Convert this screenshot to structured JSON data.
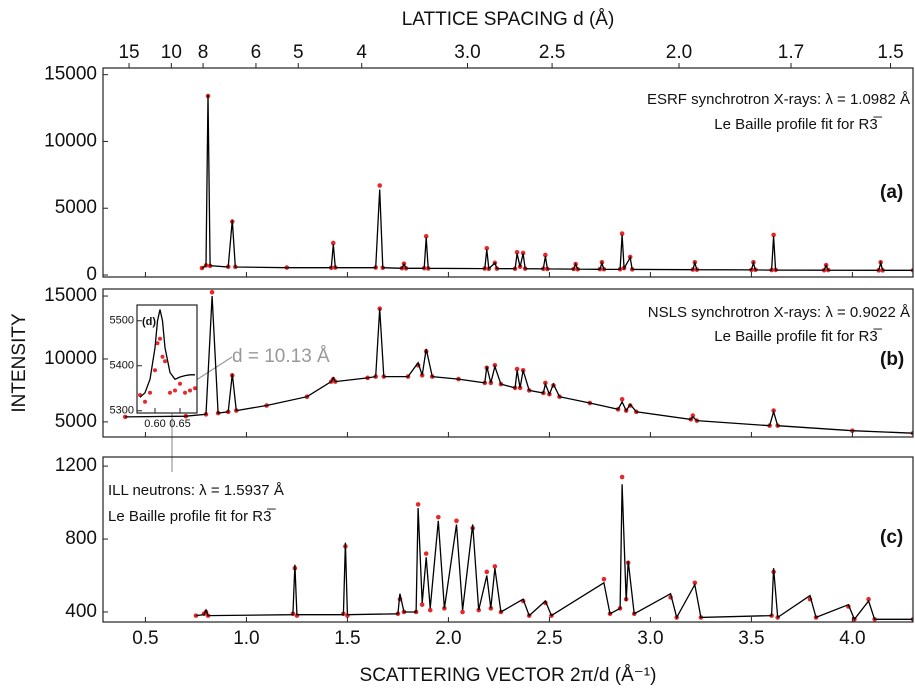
{
  "chart_data": [
    {
      "type": "line",
      "panel": "(a)",
      "x2label": "LATTICE SPACING d (Å)",
      "x2scale": "reciprocal",
      "x2ticks": [
        15,
        10,
        8,
        6,
        5,
        4,
        {
          "value": 3,
          "label": "3.0"
        },
        2.5,
        {
          "value": 2,
          "label": "2.0"
        },
        1.7,
        1.5
      ],
      "annotations": [
        "ESRF synchrotron X-rays: λ = 1.0982 Å",
        "Le Baille profile fit for R3̅"
      ],
      "xlim": [
        0.29,
        4.3
      ],
      "ylim": [
        -150,
        15500
      ],
      "yticks": [
        0,
        5000,
        10000,
        15000
      ],
      "x": [
        0.78,
        0.8,
        0.81,
        0.82,
        0.91,
        0.93,
        0.945,
        1.2,
        1.42,
        1.43,
        1.44,
        1.64,
        1.66,
        1.675,
        1.77,
        1.78,
        1.79,
        1.88,
        1.89,
        1.9,
        2.18,
        2.19,
        2.2,
        2.23,
        2.24,
        2.33,
        2.34,
        2.355,
        2.37,
        2.38,
        2.47,
        2.48,
        2.49,
        2.62,
        2.63,
        2.64,
        2.75,
        2.76,
        2.77,
        2.85,
        2.86,
        2.87,
        2.9,
        2.91,
        3.21,
        3.22,
        3.23,
        3.5,
        3.51,
        3.52,
        3.6,
        3.61,
        3.62,
        3.86,
        3.87,
        3.88,
        4.13,
        4.14,
        4.15,
        4.3
      ],
      "series": [
        {
          "style": "points",
          "color": "#e8272a",
          "values": [
            520,
            720,
            13400,
            680,
            620,
            4000,
            610,
            560,
            540,
            2400,
            560,
            560,
            6700,
            540,
            510,
            850,
            500,
            510,
            2900,
            490,
            490,
            2000,
            470,
            910,
            480,
            470,
            1700,
            620,
            1650,
            480,
            470,
            1500,
            450,
            450,
            820,
            430,
            440,
            950,
            430,
            430,
            3100,
            520,
            1350,
            420,
            410,
            950,
            400,
            380,
            950,
            390,
            370,
            3000,
            380,
            360,
            740,
            370,
            350,
            950,
            350,
            350
          ]
        },
        {
          "style": "line",
          "color": "#000000",
          "values": [
            500,
            700,
            13500,
            700,
            600,
            4100,
            600,
            550,
            550,
            2300,
            550,
            550,
            6400,
            550,
            500,
            800,
            500,
            500,
            2800,
            500,
            480,
            1900,
            480,
            900,
            480,
            470,
            1600,
            600,
            1600,
            470,
            460,
            1400,
            460,
            440,
            800,
            440,
            430,
            900,
            430,
            420,
            3000,
            500,
            1300,
            420,
            400,
            900,
            400,
            380,
            900,
            380,
            370,
            2900,
            370,
            360,
            700,
            360,
            350,
            900,
            350,
            350
          ]
        }
      ]
    },
    {
      "type": "line",
      "panel": "(b)",
      "ylabel": "INTENSITY",
      "annotations": [
        "NSLS synchrotron X-rays: λ = 0.9022 Å",
        "Le Baille profile fit for R3̅",
        "d = 10.13 Å"
      ],
      "xlim": [
        0.29,
        4.3
      ],
      "ylim": [
        3800,
        15560
      ],
      "yticks": [
        5000,
        10000,
        15000
      ],
      "x": [
        0.4,
        0.7,
        0.8,
        0.83,
        0.86,
        0.91,
        0.93,
        0.95,
        1.1,
        1.3,
        1.42,
        1.43,
        1.44,
        1.6,
        1.64,
        1.66,
        1.68,
        1.8,
        1.85,
        1.87,
        1.89,
        1.92,
        2.05,
        2.18,
        2.19,
        2.21,
        2.23,
        2.26,
        2.33,
        2.34,
        2.355,
        2.37,
        2.4,
        2.47,
        2.48,
        2.5,
        2.52,
        2.55,
        2.7,
        2.84,
        2.86,
        2.88,
        2.9,
        2.93,
        3.2,
        3.21,
        3.23,
        3.59,
        3.61,
        3.63,
        4.0,
        4.3
      ],
      "series": [
        {
          "style": "points",
          "color": "#e8272a",
          "values": [
            5400,
            5450,
            5600,
            15300,
            5700,
            5800,
            8700,
            5900,
            6300,
            7000,
            8200,
            8400,
            8200,
            8500,
            8600,
            14000,
            8600,
            8600,
            9500,
            8700,
            10600,
            8600,
            8400,
            8100,
            9300,
            8100,
            9500,
            8000,
            7700,
            9200,
            7700,
            9100,
            7500,
            7300,
            8100,
            7200,
            7900,
            7000,
            6500,
            6000,
            6800,
            5900,
            6300,
            5800,
            5200,
            5500,
            5100,
            4700,
            5900,
            4700,
            4300,
            4100
          ]
        },
        {
          "style": "line",
          "color": "#000000",
          "values": [
            5400,
            5450,
            5600,
            15000,
            5700,
            5800,
            8800,
            5900,
            6300,
            7000,
            8200,
            8500,
            8200,
            8500,
            8600,
            14000,
            8600,
            8600,
            9700,
            8700,
            10800,
            8600,
            8400,
            8100,
            9400,
            8100,
            9400,
            8000,
            7700,
            9100,
            7700,
            9100,
            7500,
            7300,
            8000,
            7200,
            8000,
            7000,
            6500,
            6000,
            6600,
            5900,
            6400,
            5800,
            5200,
            5400,
            5100,
            4700,
            5800,
            4700,
            4300,
            4100
          ]
        }
      ]
    },
    {
      "type": "line",
      "panel": "(c)",
      "xlabel": "SCATTERING VECTOR 2π/d (Å⁻¹)",
      "annotations": [
        "ILL neutrons: λ = 1.5937 Å",
        "Le Baille profile fit for R3̅"
      ],
      "xlim": [
        0.29,
        4.3
      ],
      "ylim": [
        345,
        1250
      ],
      "yticks": [
        400,
        800,
        1200
      ],
      "xticks": [
        0.5,
        {
          "value": 1,
          "label": "1.0"
        },
        1.5,
        {
          "value": 2,
          "label": "2.0"
        },
        2.5,
        {
          "value": 3,
          "label": "3.0"
        },
        3.5,
        {
          "value": 4,
          "label": "4.0"
        }
      ],
      "x": [
        0.75,
        0.79,
        0.8,
        0.81,
        1.23,
        1.24,
        1.25,
        1.48,
        1.49,
        1.5,
        1.75,
        1.76,
        1.78,
        1.84,
        1.85,
        1.87,
        1.89,
        1.91,
        1.95,
        1.98,
        2.04,
        2.07,
        2.12,
        2.15,
        2.19,
        2.21,
        2.23,
        2.26,
        2.37,
        2.4,
        2.48,
        2.51,
        2.77,
        2.8,
        2.85,
        2.86,
        2.88,
        2.89,
        2.92,
        3.1,
        3.13,
        3.22,
        3.25,
        3.6,
        3.61,
        3.63,
        3.79,
        3.82,
        3.98,
        4.01,
        4.08,
        4.11,
        4.3
      ],
      "series": [
        {
          "style": "points",
          "color": "#e8272a",
          "values": [
            380,
            390,
            400,
            380,
            390,
            640,
            380,
            390,
            760,
            380,
            390,
            470,
            400,
            400,
            990,
            440,
            720,
            410,
            920,
            420,
            900,
            400,
            860,
            410,
            620,
            420,
            650,
            400,
            460,
            380,
            450,
            380,
            580,
            390,
            420,
            1140,
            470,
            670,
            390,
            480,
            370,
            560,
            370,
            380,
            620,
            370,
            470,
            370,
            430,
            360,
            470,
            360,
            360
          ]
        },
        {
          "style": "line",
          "color": "#000000",
          "values": [
            380,
            385,
            410,
            380,
            385,
            660,
            385,
            385,
            780,
            385,
            390,
            500,
            400,
            400,
            970,
            450,
            700,
            420,
            900,
            420,
            880,
            410,
            880,
            410,
            600,
            420,
            640,
            400,
            470,
            380,
            460,
            380,
            560,
            390,
            420,
            1100,
            460,
            680,
            390,
            500,
            370,
            550,
            370,
            380,
            640,
            370,
            490,
            370,
            440,
            360,
            460,
            360,
            360
          ]
        }
      ]
    },
    {
      "type": "line",
      "panel": "(d)",
      "xlim": [
        0.564,
        0.684
      ],
      "ylim": [
        5295,
        5535
      ],
      "yticks": [
        5300,
        5400,
        5500
      ],
      "xticks": [
        {
          "value": 0.6,
          "label": "0.60"
        },
        {
          "value": 0.65,
          "label": "0.65"
        }
      ],
      "x": [
        0.57,
        0.58,
        0.59,
        0.6,
        0.605,
        0.61,
        0.615,
        0.62,
        0.63,
        0.64,
        0.65,
        0.66,
        0.67,
        0.68
      ],
      "series": [
        {
          "style": "points",
          "color": "#e8272a",
          "values": [
            5335,
            5320,
            5340,
            5390,
            5450,
            5460,
            5420,
            5410,
            5340,
            5345,
            5360,
            5340,
            5345,
            5350
          ]
        },
        {
          "style": "line",
          "color": "#000000",
          "values": [
            5330,
            5340,
            5370,
            5440,
            5500,
            5525,
            5500,
            5440,
            5385,
            5370,
            5375,
            5378,
            5380,
            5380
          ]
        }
      ]
    }
  ]
}
